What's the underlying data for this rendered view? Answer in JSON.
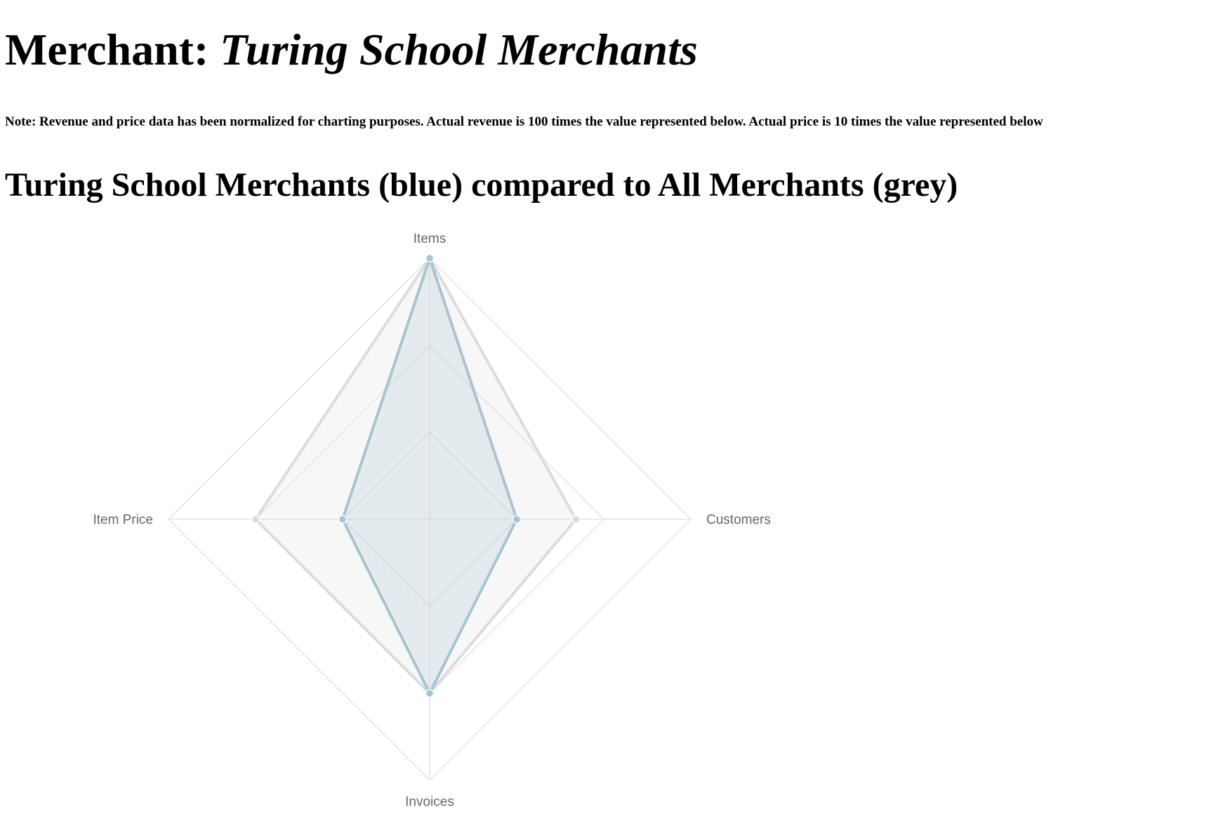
{
  "header": {
    "prefix": "Merchant: ",
    "merchant_name": "Turing School Merchants"
  },
  "note": "Note: Revenue and price data has been normalized for charting purposes. Actual revenue is 100 times the value represented below. Actual price is 10 times the value represented below",
  "chart_heading": "Turing School Merchants (blue) compared to All Merchants (grey)",
  "colors": {
    "merchant_line": "#a6c4d3",
    "merchant_fill": "rgba(166,196,211,0.22)",
    "all_line": "#dcdcdc",
    "all_fill": "rgba(220,220,220,0.22)",
    "grid": "#e3e3e3",
    "label": "#666666"
  },
  "chart_data": {
    "type": "radar",
    "categories": [
      "Items",
      "Customers",
      "Invoices",
      "Item Price"
    ],
    "scale_max": 3,
    "grid_steps": 3,
    "series": [
      {
        "name": "All Merchants",
        "color": "grey",
        "values": [
          3,
          1.68,
          2,
          2
        ]
      },
      {
        "name": "Turing School Merchants",
        "color": "blue",
        "values": [
          3,
          1,
          2,
          1
        ]
      }
    ]
  }
}
